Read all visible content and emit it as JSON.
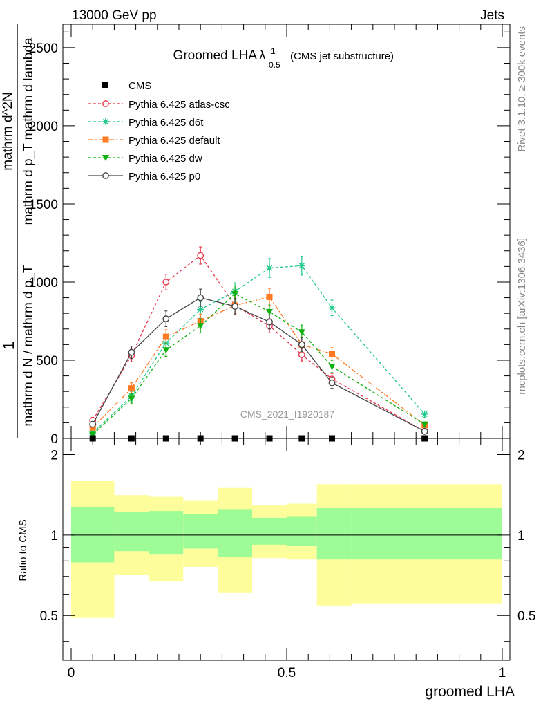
{
  "header": {
    "left": "13000 GeV pp",
    "right": "Jets",
    "rivet": "Rivet 3.1.10, ≥ 300k events",
    "mcplots": "mcplots.cern.ch [arXiv:1306.3436]"
  },
  "chart_data": {
    "type": "line",
    "title": "Groomed LHA",
    "title_symbol": "λ",
    "title_sup": "1",
    "title_sub": "0.5",
    "subtitle": "(CMS jet substructure)",
    "watermark": "CMS_2021_I1920187",
    "xlabel": "groomed LHA",
    "ylabel_top": "1",
    "ylabel_frac": "mathrm d N / mathrm d p_T",
    "ylabel_num": "mathrm d^2N",
    "ylabel_den": "mathrm d p_T mathrm d lambda",
    "ratio_ylabel": "Ratio to CMS",
    "xlim": [
      0,
      1
    ],
    "ylim": [
      0,
      2650
    ],
    "ratio_ylim": [
      0.34,
      2.3
    ],
    "x_ticks": [
      "0",
      "0.5",
      "1"
    ],
    "y_ticks": [
      "0",
      "500",
      "1000",
      "1500",
      "2000",
      "2500"
    ],
    "ratio_ticks": [
      "0.5",
      "1",
      "2"
    ],
    "legend_position": "top-left",
    "data_x": [
      0.05,
      0.14,
      0.22,
      0.3,
      0.38,
      0.46,
      0.535,
      0.605,
      0.82
    ],
    "data_y": [
      0,
      0,
      0,
      0,
      0,
      0,
      0,
      0,
      0
    ],
    "data_label": "CMS",
    "series": [
      {
        "name": "Pythia 6.425 atlas-csc",
        "color": "#e8334a",
        "marker": "open-circle",
        "dash": "4,3",
        "values": [
          115,
          530,
          1000,
          1170,
          850,
          720,
          535,
          380,
          45
        ],
        "errors": [
          20,
          40,
          50,
          55,
          50,
          45,
          40,
          35,
          15
        ]
      },
      {
        "name": "Pythia 6.425 d6t",
        "color": "#1fc98a",
        "marker": "star",
        "dash": "4,3",
        "values": [
          35,
          270,
          610,
          825,
          940,
          1090,
          1105,
          835,
          155
        ],
        "errors": [
          12,
          30,
          45,
          50,
          55,
          60,
          60,
          50,
          20
        ]
      },
      {
        "name": "Pythia 6.425 default",
        "color": "#ff7a22",
        "marker": "square",
        "dash": "7,3,2,3",
        "values": [
          70,
          320,
          650,
          750,
          850,
          905,
          600,
          540,
          85
        ],
        "errors": [
          15,
          35,
          45,
          45,
          50,
          55,
          45,
          40,
          15
        ]
      },
      {
        "name": "Pythia 6.425 dw",
        "color": "#10b010",
        "marker": "triangle-down",
        "dash": "4,3",
        "values": [
          25,
          255,
          565,
          720,
          925,
          810,
          680,
          460,
          90
        ],
        "errors": [
          10,
          30,
          40,
          45,
          50,
          50,
          45,
          40,
          15
        ]
      },
      {
        "name": "Pythia 6.425 p0",
        "color": "#444444",
        "marker": "open-circle",
        "dash": "",
        "values": [
          90,
          550,
          765,
          900,
          845,
          745,
          600,
          355,
          45
        ],
        "errors": [
          18,
          40,
          50,
          55,
          50,
          45,
          45,
          35,
          15
        ]
      }
    ],
    "ratio_bands": [
      {
        "x0": 0.0,
        "x1": 0.1,
        "inner": [
          0.79,
          1.27
        ],
        "outer": [
          0.49,
          1.6
        ]
      },
      {
        "x0": 0.1,
        "x1": 0.18,
        "inner": [
          0.87,
          1.22
        ],
        "outer": [
          0.71,
          1.41
        ]
      },
      {
        "x0": 0.18,
        "x1": 0.26,
        "inner": [
          0.85,
          1.23
        ],
        "outer": [
          0.67,
          1.39
        ]
      },
      {
        "x0": 0.26,
        "x1": 0.34,
        "inner": [
          0.89,
          1.2
        ],
        "outer": [
          0.76,
          1.35
        ]
      },
      {
        "x0": 0.34,
        "x1": 0.42,
        "inner": [
          0.83,
          1.25
        ],
        "outer": [
          0.61,
          1.5
        ]
      },
      {
        "x0": 0.42,
        "x1": 0.5,
        "inner": [
          0.92,
          1.16
        ],
        "outer": [
          0.82,
          1.29
        ]
      },
      {
        "x0": 0.5,
        "x1": 0.57,
        "inner": [
          0.91,
          1.17
        ],
        "outer": [
          0.81,
          1.31
        ]
      },
      {
        "x0": 0.57,
        "x1": 0.65,
        "inner": [
          0.81,
          1.26
        ],
        "outer": [
          0.545,
          1.55
        ]
      },
      {
        "x0": 0.65,
        "x1": 1.0,
        "inner": [
          0.81,
          1.26
        ],
        "outer": [
          0.555,
          1.55
        ]
      }
    ],
    "colors": {
      "band_inner": "#9dfc96",
      "band_outer": "#fdfd9c",
      "data": "#000000"
    }
  }
}
